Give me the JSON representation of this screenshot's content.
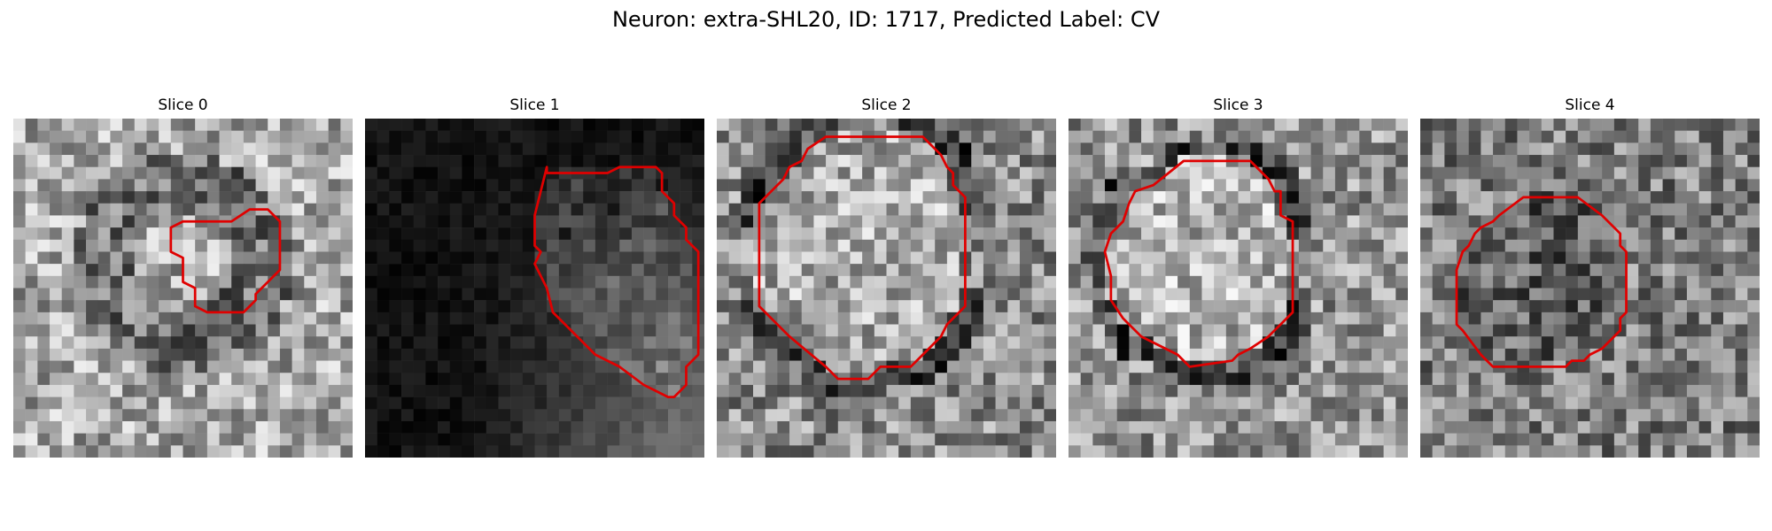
{
  "figure": {
    "title": "Neuron: extra-SHL20, ID: 1717, Predicted Label: CV"
  },
  "panels": [
    {
      "title": "Slice 0",
      "image": "grayscale-microscopy-slice",
      "mean_brightness": 0.66,
      "contour_color": "#e00000",
      "contour_polygon": [
        [
          19.5,
          7.5
        ],
        [
          21,
          7.5
        ],
        [
          22,
          8.5
        ],
        [
          22,
          12.5
        ],
        [
          20,
          14.5
        ],
        [
          20,
          15
        ],
        [
          19,
          16
        ],
        [
          16,
          16
        ],
        [
          15,
          15.5
        ],
        [
          15,
          14
        ],
        [
          14,
          13.5
        ],
        [
          14,
          11.5
        ],
        [
          13,
          11
        ],
        [
          13,
          9
        ],
        [
          14,
          8.5
        ],
        [
          18,
          8.5
        ]
      ]
    },
    {
      "title": "Slice 1",
      "image": "grayscale-microscopy-slice",
      "mean_brightness": 0.07,
      "contour_color": "#e00000",
      "contour_polygon": [
        [
          15,
          4
        ],
        [
          15,
          4.5
        ],
        [
          20,
          4.5
        ],
        [
          21,
          4
        ],
        [
          24,
          4
        ],
        [
          24.5,
          4.5
        ],
        [
          24.5,
          6
        ],
        [
          25.5,
          7
        ],
        [
          25.5,
          8
        ],
        [
          26.5,
          9
        ],
        [
          26.5,
          10
        ],
        [
          27,
          10.5
        ],
        [
          27.5,
          11
        ],
        [
          27.5,
          19.5
        ],
        [
          26.5,
          20.5
        ],
        [
          26.5,
          22
        ],
        [
          25.5,
          23
        ],
        [
          25,
          23
        ],
        [
          24,
          22.5
        ],
        [
          23,
          22
        ],
        [
          21,
          20.5
        ],
        [
          19,
          19.5
        ],
        [
          18,
          18.5
        ],
        [
          17,
          17.5
        ],
        [
          15.5,
          16
        ],
        [
          15,
          14
        ],
        [
          14.5,
          13
        ],
        [
          14,
          12
        ],
        [
          14.5,
          11
        ],
        [
          14,
          10.5
        ],
        [
          14,
          8
        ]
      ]
    },
    {
      "title": "Slice 2",
      "image": "grayscale-microscopy-slice",
      "mean_brightness": 0.55,
      "contour_color": "#e00000",
      "contour_polygon": [
        [
          9,
          1.5
        ],
        [
          17,
          1.5
        ],
        [
          18.5,
          3
        ],
        [
          19,
          4
        ],
        [
          19.5,
          4.5
        ],
        [
          19.5,
          5.5
        ],
        [
          20.5,
          6.5
        ],
        [
          20.5,
          15.5
        ],
        [
          19,
          17
        ],
        [
          18.5,
          18
        ],
        [
          17,
          19.5
        ],
        [
          16,
          20.5
        ],
        [
          13.5,
          20.5
        ],
        [
          12.5,
          21.5
        ],
        [
          10,
          21.5
        ],
        [
          9,
          20.5
        ],
        [
          6,
          18
        ],
        [
          5,
          17
        ],
        [
          3.5,
          15.5
        ],
        [
          3.5,
          7
        ],
        [
          4.5,
          6
        ],
        [
          5.5,
          5
        ],
        [
          6,
          4
        ],
        [
          7,
          3.5
        ],
        [
          7.5,
          2.5
        ]
      ]
    },
    {
      "title": "Slice 3",
      "image": "grayscale-microscopy-slice",
      "mean_brightness": 0.58,
      "contour_color": "#e00000",
      "contour_polygon": [
        [
          9.5,
          3.5
        ],
        [
          15,
          3.5
        ],
        [
          16.5,
          5
        ],
        [
          17,
          6
        ],
        [
          17.5,
          6
        ],
        [
          17.5,
          8
        ],
        [
          18.5,
          8.5
        ],
        [
          18.5,
          16
        ],
        [
          17.5,
          17
        ],
        [
          16.5,
          18
        ],
        [
          15,
          19
        ],
        [
          14,
          19.5
        ],
        [
          13.5,
          20
        ],
        [
          10,
          20.5
        ],
        [
          9,
          19.5
        ],
        [
          6,
          18
        ],
        [
          4.5,
          16.5
        ],
        [
          3.5,
          15
        ],
        [
          3.5,
          13
        ],
        [
          3,
          11
        ],
        [
          3.5,
          9.5
        ],
        [
          4,
          9
        ],
        [
          4.5,
          8.5
        ],
        [
          5,
          7
        ],
        [
          5.5,
          6
        ],
        [
          7,
          5.5
        ]
      ]
    },
    {
      "title": "Slice 4",
      "image": "grayscale-microscopy-slice",
      "mean_brightness": 0.49,
      "contour_color": "#e00000",
      "contour_polygon": [
        [
          8.5,
          6.5
        ],
        [
          13,
          6.5
        ],
        [
          15,
          8
        ],
        [
          16.5,
          9.5
        ],
        [
          16.5,
          10.5
        ],
        [
          17,
          11
        ],
        [
          17,
          16
        ],
        [
          16.5,
          16.5
        ],
        [
          16.5,
          17.5
        ],
        [
          15,
          19
        ],
        [
          14,
          19.5
        ],
        [
          13.5,
          20
        ],
        [
          12.5,
          20
        ],
        [
          12,
          20.5
        ],
        [
          6,
          20.5
        ],
        [
          5,
          19.5
        ],
        [
          3.5,
          17.5
        ],
        [
          3,
          17
        ],
        [
          3,
          12.5
        ],
        [
          3.5,
          11
        ],
        [
          4,
          10.5
        ],
        [
          4.5,
          9.5
        ],
        [
          5,
          9
        ],
        [
          6,
          8.5
        ],
        [
          6.5,
          8
        ]
      ]
    }
  ]
}
